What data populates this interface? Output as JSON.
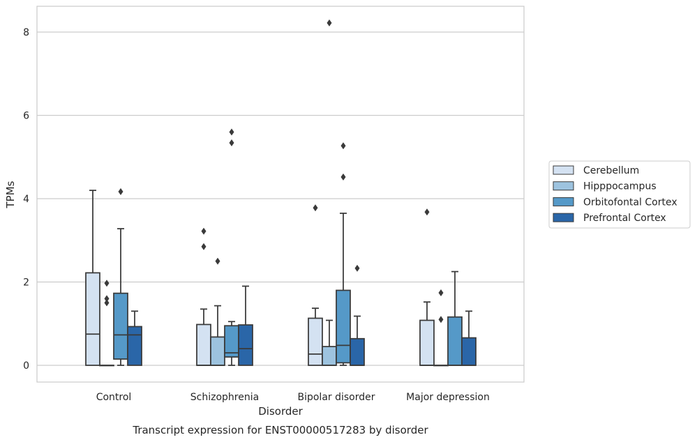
{
  "chart_data": {
    "type": "box",
    "title": "Transcript expression for ENST00000517283 by disorder",
    "xlabel": "Disorder",
    "ylabel": "TPMs",
    "ylim": [
      -0.4,
      8.65
    ],
    "yticks": [
      0,
      2,
      4,
      6,
      8
    ],
    "grid": true,
    "legend_position": "right",
    "categories": [
      "Control",
      "Schizophrenia",
      "Bipolar disorder",
      "Major depression"
    ],
    "series": [
      {
        "name": "Cerebellum",
        "color": "#d4e2f2",
        "boxes": [
          {
            "whislo": 0,
            "q1": 0,
            "med": 0.75,
            "q3": 2.22,
            "whishi": 4.2,
            "fliers": []
          },
          {
            "whislo": 0,
            "q1": 0,
            "med": 0,
            "q3": 0.98,
            "whishi": 1.35,
            "fliers": [
              2.85,
              3.22
            ]
          },
          {
            "whislo": 0,
            "q1": 0,
            "med": 0.27,
            "q3": 1.13,
            "whishi": 1.37,
            "fliers": [
              3.78
            ]
          },
          {
            "whislo": 0,
            "q1": 0,
            "med": 0,
            "q3": 1.08,
            "whishi": 1.52,
            "fliers": [
              3.68
            ]
          }
        ]
      },
      {
        "name": "Hipppocampus",
        "color": "#9dc3df",
        "boxes": [
          {
            "whislo": 0,
            "q1": 0,
            "med": 0,
            "q3": 0,
            "whishi": 0,
            "fliers": [
              1.5,
              1.6,
              1.97
            ]
          },
          {
            "whislo": 0,
            "q1": 0,
            "med": 0,
            "q3": 0.68,
            "whishi": 1.43,
            "fliers": [
              2.5
            ]
          },
          {
            "whislo": 0,
            "q1": 0,
            "med": 0,
            "q3": 0.45,
            "whishi": 1.08,
            "fliers": [
              8.22
            ]
          },
          {
            "whislo": 0,
            "q1": 0,
            "med": 0,
            "q3": 0,
            "whishi": 0,
            "fliers": [
              1.1,
              1.74
            ]
          }
        ]
      },
      {
        "name": "Orbitofontal Cortex",
        "color": "#5599c8",
        "boxes": [
          {
            "whislo": 0,
            "q1": 0.15,
            "med": 0.73,
            "q3": 1.73,
            "whishi": 3.28,
            "fliers": [
              4.17
            ]
          },
          {
            "whislo": 0,
            "q1": 0.2,
            "med": 0.3,
            "q3": 0.95,
            "whishi": 1.05,
            "fliers": [
              5.34,
              5.6
            ]
          },
          {
            "whislo": 0,
            "q1": 0.06,
            "med": 0.48,
            "q3": 1.8,
            "whishi": 3.65,
            "fliers": [
              4.52,
              5.27
            ]
          },
          {
            "whislo": 0,
            "q1": 0,
            "med": 0,
            "q3": 1.16,
            "whishi": 2.25,
            "fliers": []
          }
        ]
      },
      {
        "name": "Prefrontal Cortex",
        "color": "#2a66a8",
        "boxes": [
          {
            "whislo": 0,
            "q1": 0,
            "med": 0.73,
            "q3": 0.93,
            "whishi": 1.3,
            "fliers": []
          },
          {
            "whislo": 0,
            "q1": 0,
            "med": 0.4,
            "q3": 0.97,
            "whishi": 1.9,
            "fliers": []
          },
          {
            "whislo": 0,
            "q1": 0,
            "med": 0,
            "q3": 0.64,
            "whishi": 1.18,
            "fliers": [
              2.33
            ]
          },
          {
            "whislo": 0,
            "q1": 0,
            "med": 0,
            "q3": 0.66,
            "whishi": 1.3,
            "fliers": []
          }
        ]
      }
    ]
  }
}
